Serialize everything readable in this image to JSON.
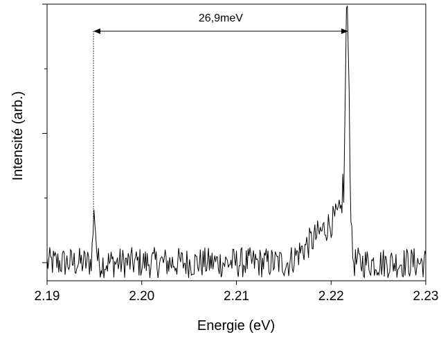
{
  "chart_data": {
    "type": "line",
    "xlabel": "Energie (eV)",
    "ylabel": "Intensité (arb.)",
    "xlim": [
      2.19,
      2.23
    ],
    "ylim": [
      -0.7,
      10.0
    ],
    "x_ticks": [
      "2.19",
      "2.20",
      "2.21",
      "2.22",
      "2.23"
    ],
    "x_tick_values": [
      2.19,
      2.2,
      2.21,
      2.22,
      2.23
    ],
    "y_major_tick_values": [
      0,
      5,
      10
    ],
    "y_minor_tick_values": [
      2.5,
      7.5
    ],
    "grid": false,
    "annotation": {
      "label": "26,9meV",
      "x_start": 2.1949,
      "x_end": 2.2218,
      "y": 10.0
    },
    "series": [
      {
        "color": "#000000",
        "noise_amplitude": 0.6,
        "baseline": 0.0,
        "peaks": [
          {
            "x": 2.195,
            "height": 1.9,
            "width": 0.00015
          },
          {
            "x": 2.2217,
            "height": 10.0,
            "width": 0.00022
          }
        ],
        "shoulder": {
          "start": 2.2155,
          "end": 2.2213,
          "max": 2.0
        }
      }
    ]
  }
}
